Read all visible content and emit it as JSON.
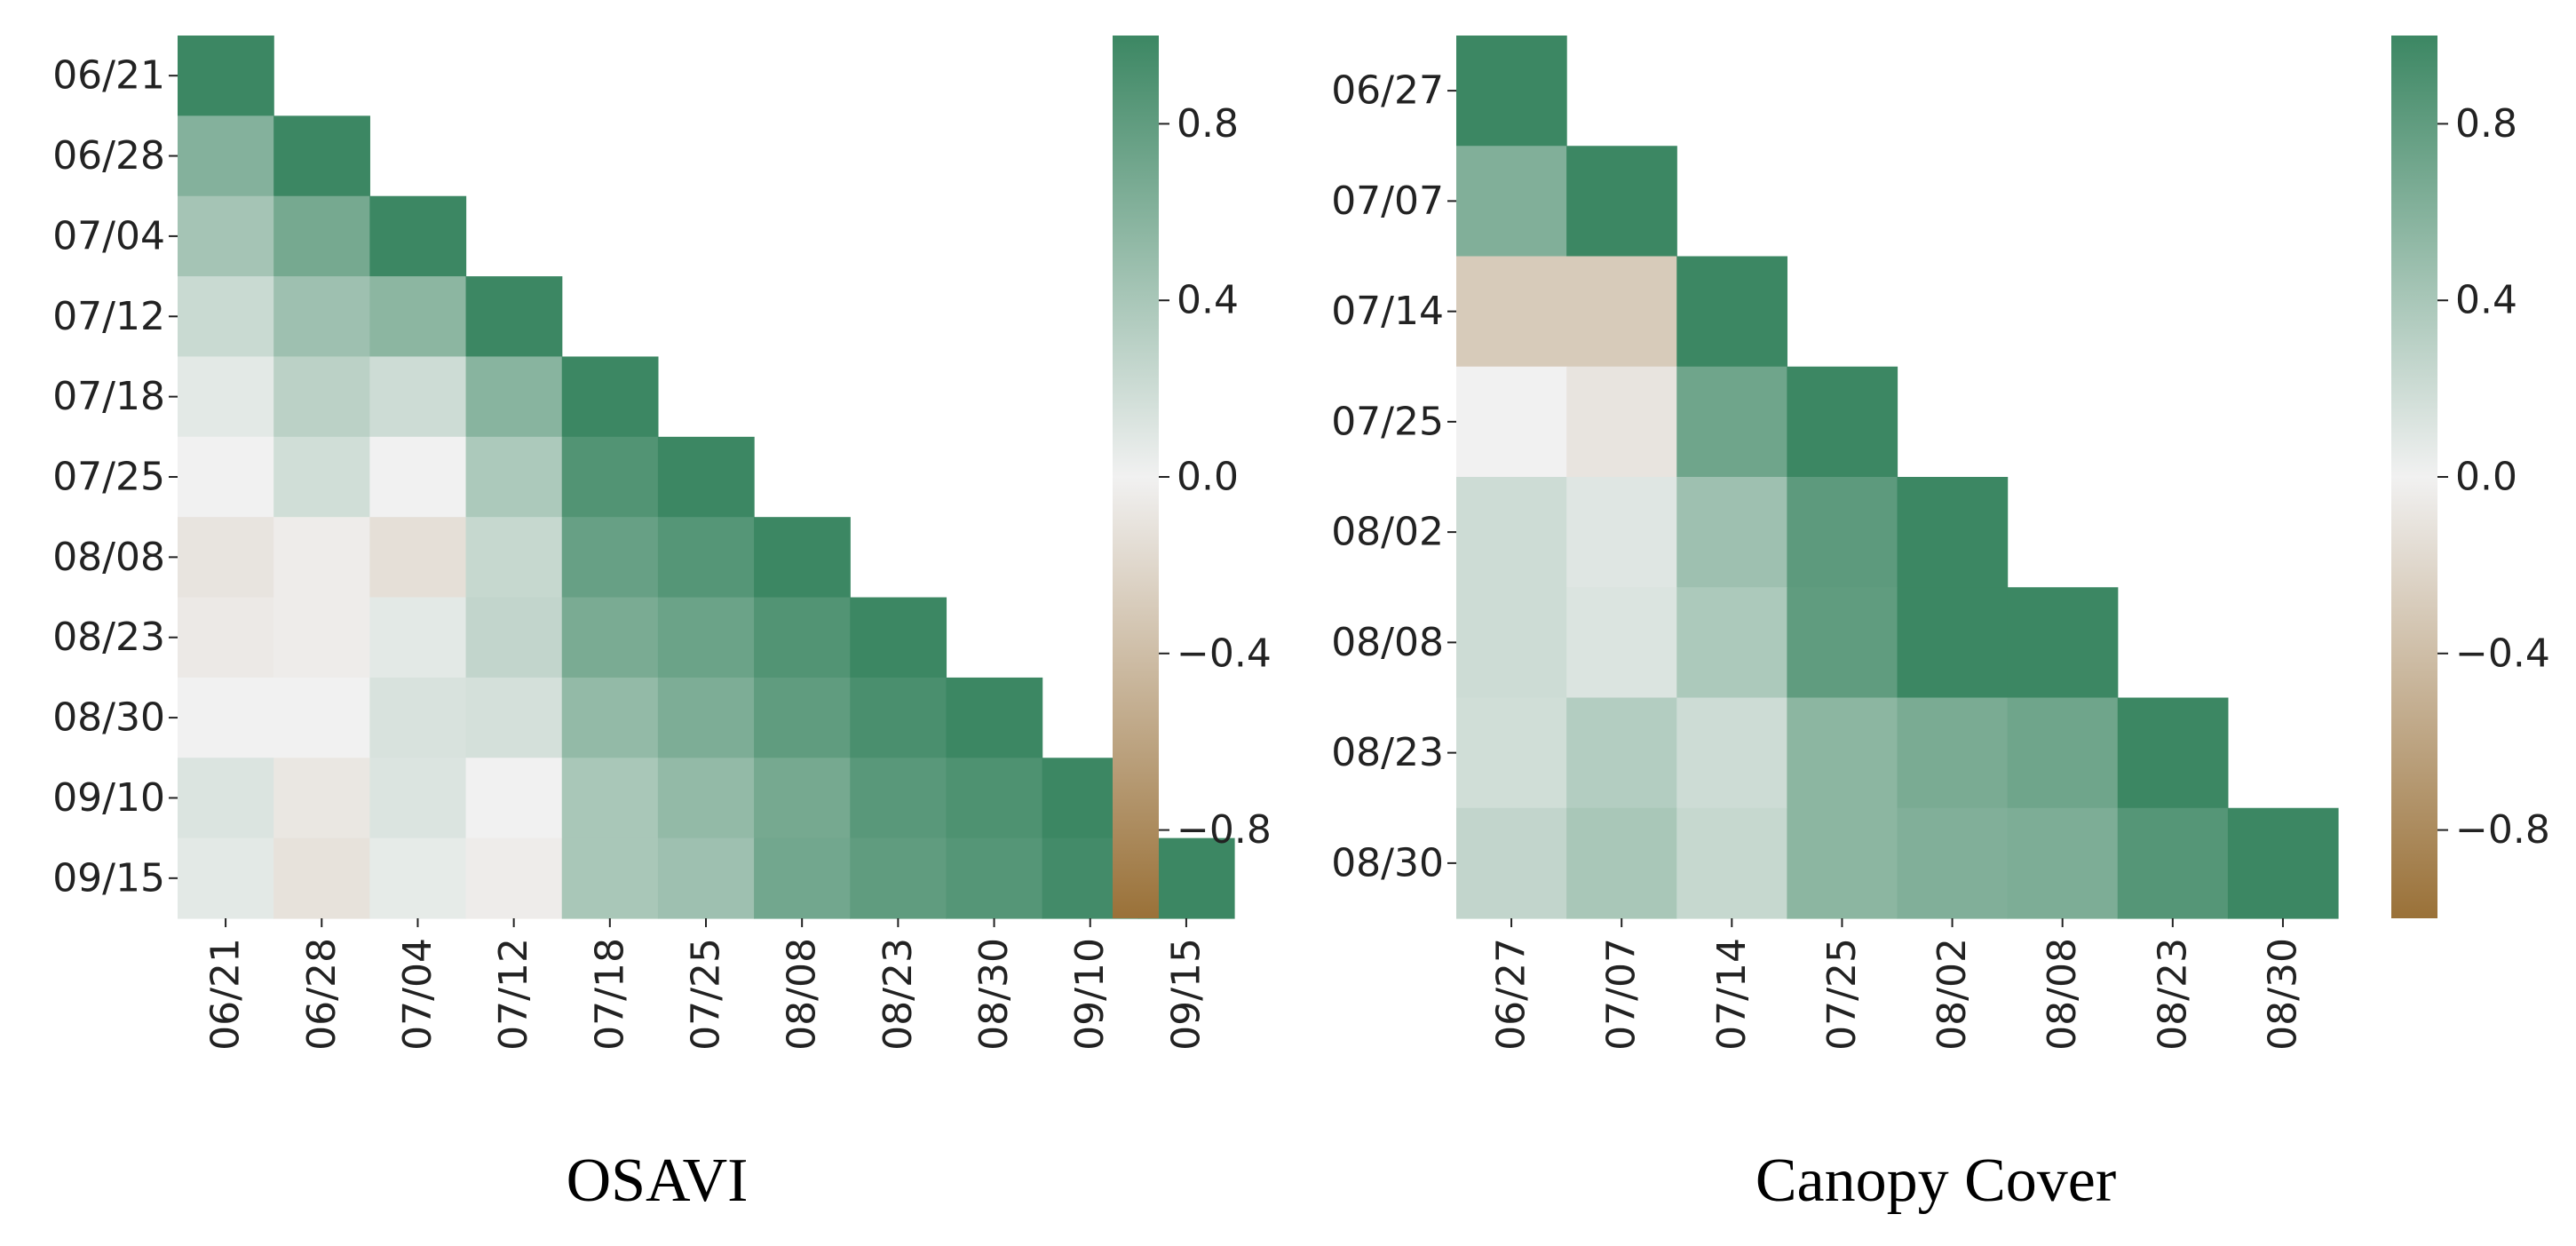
{
  "colors": {
    "negative_end": "#9a7138",
    "neutral": "#f1f1f1",
    "positive_end": "#3c8763"
  },
  "chart_data": [
    {
      "type": "heatmap",
      "title": "OSAVI",
      "categories": [
        "06/21",
        "06/28",
        "07/04",
        "07/12",
        "07/18",
        "07/25",
        "08/08",
        "08/23",
        "08/30",
        "09/10",
        "09/15"
      ],
      "matrix": [
        [
          1.0
        ],
        [
          0.6,
          1.0
        ],
        [
          0.42,
          0.68,
          1.0
        ],
        [
          0.22,
          0.46,
          0.56,
          1.0
        ],
        [
          0.08,
          0.3,
          0.2,
          0.58,
          1.0
        ],
        [
          0.0,
          0.18,
          0.0,
          0.38,
          0.88,
          1.0
        ],
        [
          -0.1,
          -0.04,
          -0.14,
          0.24,
          0.76,
          0.86,
          1.0
        ],
        [
          -0.06,
          -0.04,
          0.08,
          0.26,
          0.66,
          0.74,
          0.88,
          1.0
        ],
        [
          0.0,
          0.0,
          0.14,
          0.16,
          0.52,
          0.64,
          0.8,
          0.92,
          1.0
        ],
        [
          0.12,
          -0.08,
          0.12,
          0.0,
          0.4,
          0.52,
          0.68,
          0.84,
          0.9,
          1.0
        ],
        [
          0.08,
          -0.12,
          0.06,
          -0.04,
          0.4,
          0.46,
          0.7,
          0.8,
          0.86,
          0.96,
          1.0
        ]
      ],
      "colorbar": {
        "range": [
          -1,
          1
        ],
        "ticks": [
          "0.8",
          "0.4",
          "0.0",
          "−0.4",
          "−0.8"
        ],
        "tick_values": [
          0.8,
          0.4,
          0.0,
          -0.4,
          -0.8
        ]
      }
    },
    {
      "type": "heatmap",
      "title": "Canopy Cover",
      "categories": [
        "06/27",
        "07/07",
        "07/14",
        "07/25",
        "08/02",
        "08/08",
        "08/23",
        "08/30"
      ],
      "matrix": [
        [
          1.0
        ],
        [
          0.62,
          1.0
        ],
        [
          -0.3,
          -0.3,
          1.0
        ],
        [
          0.0,
          -0.1,
          0.72,
          1.0
        ],
        [
          0.2,
          0.1,
          0.46,
          0.82,
          1.0
        ],
        [
          0.2,
          0.12,
          0.38,
          0.8,
          1.0,
          1.0
        ],
        [
          0.18,
          0.34,
          0.2,
          0.56,
          0.66,
          0.72,
          1.0
        ],
        [
          0.26,
          0.4,
          0.24,
          0.56,
          0.62,
          0.64,
          0.86,
          1.0
        ]
      ],
      "colorbar": {
        "range": [
          -1,
          1
        ],
        "ticks": [
          "0.8",
          "0.4",
          "0.0",
          "−0.4",
          "−0.8"
        ],
        "tick_values": [
          0.8,
          0.4,
          0.0,
          -0.4,
          -0.8
        ]
      }
    }
  ]
}
